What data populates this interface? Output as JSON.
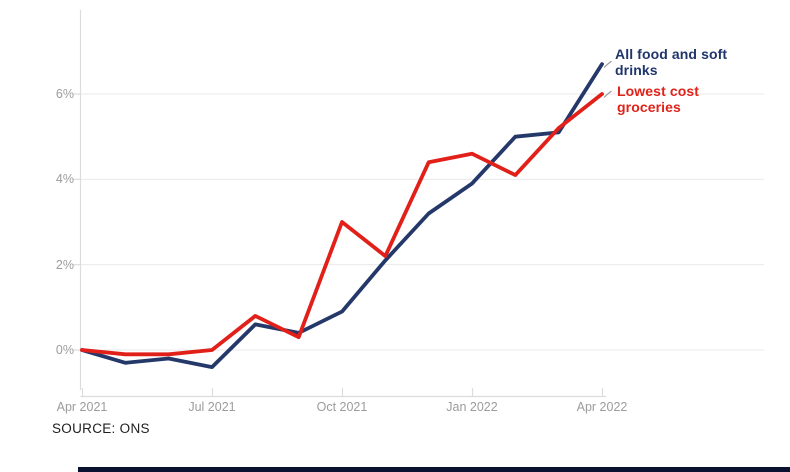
{
  "source": {
    "label": "SOURCE: ONS"
  },
  "colors": {
    "navy": "#25386a",
    "red": "#e2201a",
    "grid": "#e9e9e9",
    "axis": "#dcdcdc",
    "tick_label": "#9c9c9c",
    "connector": "#9b9b9b",
    "bottom_bar": "#0a1232"
  },
  "chart_data": {
    "type": "line",
    "title": "",
    "xlabel": "",
    "ylabel": "",
    "x": [
      "Apr 2021",
      "May 2021",
      "Jun 2021",
      "Jul 2021",
      "Aug 2021",
      "Sep 2021",
      "Oct 2021",
      "Nov 2021",
      "Dec 2021",
      "Jan 2022",
      "Feb 2022",
      "Mar 2022",
      "Apr 2022"
    ],
    "x_tick_labels": [
      "Apr 2021",
      "Jul 2021",
      "Oct 2021",
      "Jan 2022",
      "Apr 2022"
    ],
    "x_tick_indices": [
      0,
      3,
      6,
      9,
      12
    ],
    "y_ticks": [
      0,
      2,
      4,
      6
    ],
    "y_tick_labels": [
      "0%",
      "2%",
      "4%",
      "6%"
    ],
    "ylim": [
      -1.1,
      8.0
    ],
    "grid": "horizontal-only",
    "legend_position": "end-of-line-labels",
    "series": [
      {
        "name": "All food and soft drinks",
        "lines": [
          "All food and soft",
          "drinks"
        ],
        "color_key": "navy",
        "values": [
          0.0,
          -0.3,
          -0.2,
          -0.4,
          0.6,
          0.4,
          0.9,
          2.1,
          3.2,
          3.9,
          5.0,
          5.1,
          6.7
        ]
      },
      {
        "name": "Lowest cost groceries",
        "lines": [
          "Lowest cost",
          "groceries"
        ],
        "color_key": "red",
        "values": [
          0.0,
          -0.1,
          -0.1,
          0.0,
          0.8,
          0.3,
          3.0,
          2.2,
          4.4,
          4.6,
          4.1,
          5.2,
          6.0
        ]
      }
    ]
  }
}
